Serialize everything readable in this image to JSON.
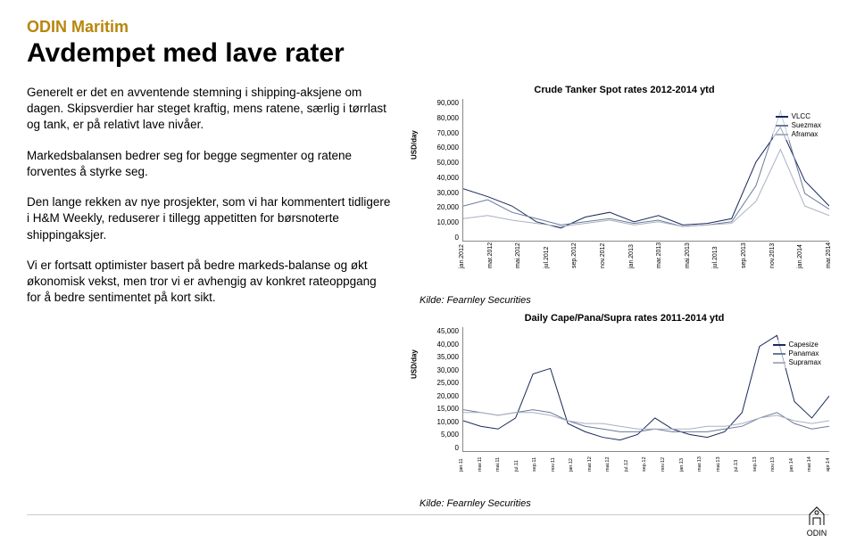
{
  "header": {
    "subtitle": "ODIN Maritim",
    "subtitle_color": "#b8860b",
    "title": "Avdempet med lave rater"
  },
  "body": {
    "p1": "Generelt er det en avventende stemning i shipping-aksjene om dagen. Skipsverdier har steget kraftig, mens ratene, særlig i tørrlast og tank, er på relativt lave nivåer.",
    "p2": "Markedsbalansen bedrer seg for begge segmenter og ratene forventes å styrke seg.",
    "p3": "Den lange rekken av nye prosjekter, som vi har kommentert tidligere i H&M Weekly, reduserer i tillegg appetitten for børsnoterte shippingaksjer.",
    "p4": "Vi er fortsatt optimister basert på bedre markeds-balanse og økt økonomisk vekst, men tror vi er avhengig av konkret rateoppgang for å bedre sentimentet på kort sikt."
  },
  "chart1": {
    "title": "Crude Tanker Spot rates 2012-2014 ytd",
    "ylabel": "USD/day",
    "y_ticks": [
      "90,000",
      "80,000",
      "70,000",
      "60,000",
      "50,000",
      "40,000",
      "30,000",
      "20,000",
      "10,000",
      "0"
    ],
    "ymax": 90000,
    "x_ticks": [
      "jan.2012",
      "mar.2012",
      "mai.2012",
      "jul.2012",
      "sep.2012",
      "nov.2012",
      "jan.2013",
      "mar.2013",
      "mai.2013",
      "jul.2013",
      "sep.2013",
      "nov.2013",
      "jan.2014",
      "mar.2014"
    ],
    "series": [
      {
        "name": "VLCC",
        "color": "#1a2a5a",
        "points": [
          33000,
          28000,
          22000,
          12000,
          8000,
          15000,
          18000,
          12000,
          16000,
          10000,
          11000,
          14000,
          50000,
          72000,
          38000,
          22000
        ]
      },
      {
        "name": "Suezmax",
        "color": "#6a7a9a",
        "points": [
          22000,
          26000,
          18000,
          14000,
          10000,
          12000,
          14000,
          11000,
          13000,
          9000,
          10000,
          12000,
          35000,
          82000,
          30000,
          20000
        ]
      },
      {
        "name": "Aframax",
        "color": "#aab0c0",
        "points": [
          14000,
          16000,
          13000,
          11000,
          9000,
          11000,
          13000,
          10000,
          12000,
          9000,
          10000,
          11000,
          25000,
          58000,
          22000,
          16000
        ]
      }
    ],
    "caption": "Kilde: Fearnley Securities"
  },
  "chart2": {
    "title": "Daily Cape/Pana/Supra rates 2011-2014 ytd",
    "ylabel": "USD/day",
    "y_ticks": [
      "45,000",
      "40,000",
      "35,000",
      "30,000",
      "25,000",
      "20,000",
      "15,000",
      "10,000",
      "5,000",
      "0"
    ],
    "ymax": 45000,
    "x_ticks": [
      "jan.11",
      "mar.11",
      "mai.11",
      "jul.11",
      "sep.11",
      "nov.11",
      "jan.12",
      "mar.12",
      "mai.12",
      "jul.12",
      "sep.12",
      "nov.12",
      "jan.13",
      "mar.13",
      "mai.13",
      "jul.13",
      "sep.13",
      "nov.13",
      "jan.14",
      "mar.14",
      "apr.14"
    ],
    "series": [
      {
        "name": "Capesize",
        "color": "#1a2a5a",
        "points": [
          11000,
          9000,
          8000,
          12000,
          28000,
          30000,
          10000,
          7000,
          5000,
          4000,
          6000,
          12000,
          8000,
          6000,
          5000,
          7000,
          14000,
          38000,
          42000,
          18000,
          12000,
          20000
        ]
      },
      {
        "name": "Panamax",
        "color": "#6a7a9a",
        "points": [
          15000,
          14000,
          13000,
          14000,
          15000,
          14000,
          11000,
          9000,
          8000,
          7000,
          7000,
          8000,
          7000,
          7000,
          7000,
          8000,
          9000,
          12000,
          14000,
          10000,
          8000,
          9000
        ]
      },
      {
        "name": "Supramax",
        "color": "#aab0c0",
        "points": [
          14000,
          14000,
          13000,
          14000,
          14000,
          13000,
          11000,
          10000,
          10000,
          9000,
          8000,
          8000,
          8000,
          8000,
          9000,
          9000,
          10000,
          12000,
          13000,
          11000,
          10000,
          11000
        ]
      }
    ],
    "caption": "Kilde: Fearnley Securities"
  },
  "logo_text": "ODIN"
}
